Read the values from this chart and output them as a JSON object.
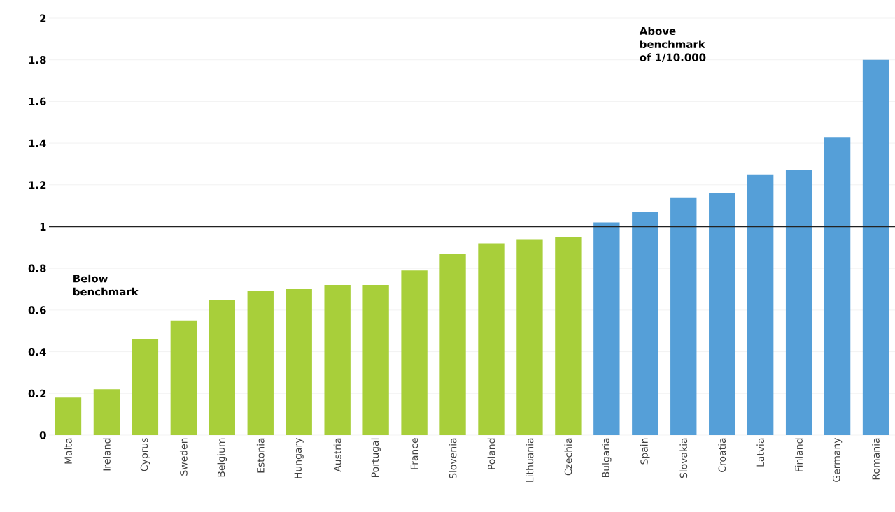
{
  "chart_data": {
    "type": "bar",
    "categories": [
      "Malta",
      "Ireland",
      "Cyprus",
      "Sweden",
      "Belgium",
      "Estonia",
      "Hungary",
      "Austria",
      "Portugal",
      "France",
      "Slovenia",
      "Poland",
      "Lithuania",
      "Czechia",
      "Bulgaria",
      "Spain",
      "Slovakia",
      "Croatia",
      "Latvia",
      "Finland",
      "Germany",
      "Romania"
    ],
    "values": [
      0.18,
      0.22,
      0.46,
      0.55,
      0.65,
      0.69,
      0.7,
      0.72,
      0.72,
      0.79,
      0.87,
      0.92,
      0.94,
      0.95,
      1.02,
      1.07,
      1.14,
      1.16,
      1.25,
      1.27,
      1.43,
      1.8
    ],
    "colors": [
      "#a8cf3a",
      "#a8cf3a",
      "#a8cf3a",
      "#a8cf3a",
      "#a8cf3a",
      "#a8cf3a",
      "#a8cf3a",
      "#a8cf3a",
      "#a8cf3a",
      "#a8cf3a",
      "#a8cf3a",
      "#a8cf3a",
      "#a8cf3a",
      "#a8cf3a",
      "#559fd8",
      "#559fd8",
      "#559fd8",
      "#559fd8",
      "#559fd8",
      "#559fd8",
      "#559fd8",
      "#559fd8"
    ],
    "ylim": [
      0,
      2
    ],
    "yticks": [
      0,
      0.2,
      0.4,
      0.6,
      0.8,
      1,
      1.2,
      1.4,
      1.6,
      1.8,
      2
    ],
    "grid": "y",
    "ref_lines": [
      {
        "axis": "y",
        "value": 1,
        "color": "#222222"
      }
    ],
    "annotations": [
      "Below benchmark",
      "Above benchmark of 1/10.000"
    ]
  }
}
